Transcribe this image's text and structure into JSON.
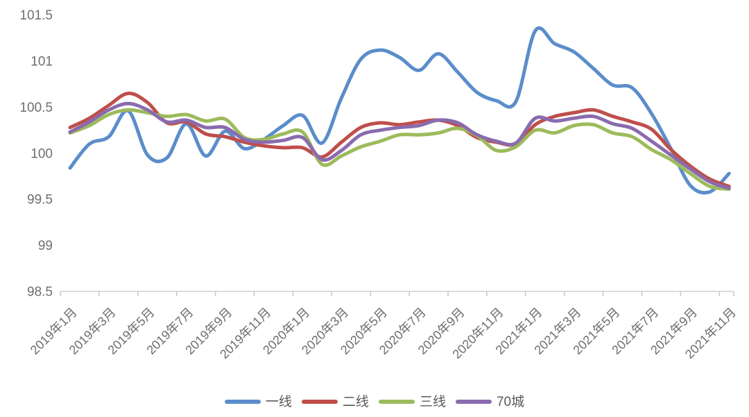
{
  "chart_data": {
    "type": "line",
    "title": "",
    "x": [
      "2019年1月",
      "2019年2月",
      "2019年3月",
      "2019年4月",
      "2019年5月",
      "2019年6月",
      "2019年7月",
      "2019年8月",
      "2019年9月",
      "2019年10月",
      "2019年11月",
      "2019年12月",
      "2020年1月",
      "2020年2月",
      "2020年3月",
      "2020年4月",
      "2020年5月",
      "2020年6月",
      "2020年7月",
      "2020年8月",
      "2020年9月",
      "2020年10月",
      "2020年11月",
      "2020年12月",
      "2021年1月",
      "2021年2月",
      "2021年3月",
      "2021年4月",
      "2021年5月",
      "2021年6月",
      "2021年7月",
      "2021年8月",
      "2021年9月",
      "2021年10月",
      "2021年11月"
    ],
    "x_tick_labels": [
      "2019年1月",
      "2019年3月",
      "2019年5月",
      "2019年7月",
      "2019年9月",
      "2019年11月",
      "2020年1月",
      "2020年3月",
      "2020年5月",
      "2020年7月",
      "2020年9月",
      "2020年11月",
      "2021年1月",
      "2021年3月",
      "2021年5月",
      "2021年7月",
      "2021年9月",
      "2021年11月"
    ],
    "y_ticks": [
      98.5,
      99,
      99.5,
      100,
      100.5,
      101,
      101.5
    ],
    "ylim": [
      98.5,
      101.5
    ],
    "grid": false,
    "legend_position": "bottom",
    "series": [
      {
        "name": "一线",
        "color": "#5b8dcb",
        "values": [
          99.84,
          100.1,
          100.18,
          100.46,
          99.98,
          99.95,
          100.32,
          99.97,
          100.24,
          100.05,
          100.15,
          100.3,
          100.41,
          100.11,
          100.6,
          101.02,
          101.12,
          101.04,
          100.9,
          101.08,
          100.88,
          100.66,
          100.57,
          100.56,
          101.33,
          101.19,
          101.1,
          100.92,
          100.74,
          100.71,
          100.43,
          100.05,
          99.65,
          99.58,
          99.78
        ]
      },
      {
        "name": "二线",
        "color": "#bf4e4a",
        "values": [
          100.28,
          100.38,
          100.52,
          100.65,
          100.55,
          100.33,
          100.34,
          100.21,
          100.18,
          100.12,
          100.08,
          100.06,
          100.06,
          99.96,
          100.12,
          100.28,
          100.33,
          100.31,
          100.34,
          100.36,
          100.3,
          100.17,
          100.12,
          100.1,
          100.31,
          100.4,
          100.44,
          100.47,
          100.4,
          100.34,
          100.26,
          100.04,
          99.86,
          99.72,
          99.64
        ]
      },
      {
        "name": "三线",
        "color": "#9cbb5c",
        "values": [
          100.22,
          100.3,
          100.42,
          100.47,
          100.44,
          100.4,
          100.42,
          100.35,
          100.37,
          100.17,
          100.15,
          100.21,
          100.23,
          99.88,
          99.97,
          100.07,
          100.13,
          100.2,
          100.2,
          100.22,
          100.27,
          100.19,
          100.03,
          100.07,
          100.25,
          100.22,
          100.3,
          100.31,
          100.22,
          100.18,
          100.04,
          99.93,
          99.78,
          99.64,
          99.61
        ]
      },
      {
        "name": "70城",
        "color": "#8a6bae",
        "values": [
          100.23,
          100.34,
          100.47,
          100.54,
          100.47,
          100.34,
          100.36,
          100.28,
          100.28,
          100.15,
          100.12,
          100.14,
          100.17,
          99.93,
          100.03,
          100.2,
          100.25,
          100.28,
          100.3,
          100.36,
          100.33,
          100.2,
          100.13,
          100.11,
          100.38,
          100.35,
          100.38,
          100.4,
          100.32,
          100.27,
          100.13,
          99.98,
          99.83,
          99.69,
          99.62
        ]
      }
    ]
  },
  "style": {
    "axis_color": "#cfcfcf",
    "tick_color": "#c9c9c9",
    "label_color": "#6e6e6e",
    "background": "#ffffff",
    "line_width": 5
  }
}
